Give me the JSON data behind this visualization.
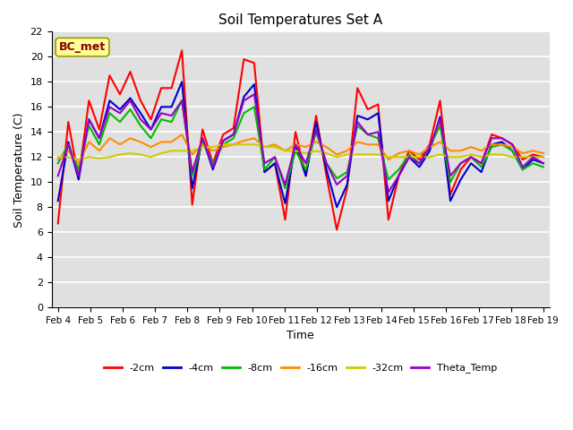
{
  "title": "Soil Temperatures Set A",
  "xlabel": "Time",
  "ylabel": "Soil Temperature (C)",
  "ylim": [
    0,
    22
  ],
  "yticks": [
    0,
    2,
    4,
    6,
    8,
    10,
    12,
    14,
    16,
    18,
    20,
    22
  ],
  "xtick_labels": [
    "Feb 4",
    "Feb 5",
    "Feb 6",
    "Feb 7",
    "Feb 8",
    "Feb 9",
    "Feb 10",
    "Feb 11",
    "Feb 12",
    "Feb 13",
    "Feb 14",
    "Feb 15",
    "Feb 16",
    "Feb 17",
    "Feb 18",
    "Feb 19"
  ],
  "n_days": 16,
  "annotation_text": "BC_met",
  "annotation_color": "#8B0000",
  "annotation_bg": "#FFFF99",
  "bg_color": "#E0E0E0",
  "grid_color": "white",
  "series_names": [
    "-2cm",
    "-4cm",
    "-8cm",
    "-16cm",
    "-32cm",
    "Theta_Temp"
  ],
  "series_colors": [
    "#FF0000",
    "#0000CC",
    "#00BB00",
    "#FF8C00",
    "#CCCC00",
    "#9900CC"
  ],
  "linewidth": 1.5,
  "cm2": [
    6.7,
    14.8,
    10.3,
    16.5,
    14.2,
    18.5,
    17.0,
    18.8,
    16.5,
    15.0,
    17.5,
    17.5,
    20.5,
    8.2,
    14.2,
    11.5,
    13.8,
    14.3,
    19.8,
    19.5,
    10.8,
    11.5,
    7.0,
    14.0,
    10.5,
    15.3,
    10.5,
    6.2,
    9.5,
    17.5,
    15.8,
    16.2,
    7.0,
    10.5,
    12.5,
    11.8,
    13.0,
    16.5,
    9.0,
    11.0,
    12.0,
    11.5,
    13.8,
    13.5,
    13.0,
    11.8,
    12.2,
    12.0
  ],
  "cm4": [
    8.5,
    13.2,
    10.2,
    15.0,
    13.5,
    16.5,
    15.8,
    16.7,
    15.5,
    14.2,
    16.0,
    16.0,
    18.0,
    9.5,
    13.5,
    11.0,
    13.3,
    13.8,
    16.8,
    17.8,
    10.8,
    11.5,
    8.3,
    13.0,
    10.5,
    14.8,
    11.0,
    8.0,
    9.8,
    15.3,
    15.0,
    15.5,
    8.5,
    10.5,
    12.0,
    11.2,
    12.5,
    15.2,
    8.5,
    10.2,
    11.5,
    10.8,
    13.0,
    13.2,
    12.5,
    11.0,
    11.8,
    11.5
  ],
  "cm8": [
    11.5,
    13.0,
    11.0,
    14.5,
    13.0,
    15.5,
    14.8,
    15.8,
    14.5,
    13.5,
    15.0,
    14.8,
    16.5,
    10.5,
    13.2,
    11.5,
    13.0,
    13.5,
    15.5,
    16.0,
    11.0,
    12.0,
    9.5,
    12.5,
    11.0,
    14.0,
    11.5,
    10.3,
    10.8,
    14.5,
    13.8,
    13.5,
    10.2,
    11.0,
    12.2,
    11.5,
    12.8,
    14.5,
    10.0,
    11.5,
    12.0,
    11.2,
    12.8,
    13.0,
    12.5,
    11.0,
    11.5,
    11.2
  ],
  "cm16": [
    11.8,
    12.5,
    11.5,
    13.2,
    12.5,
    13.5,
    13.0,
    13.5,
    13.2,
    12.8,
    13.2,
    13.2,
    13.8,
    12.2,
    13.0,
    12.5,
    12.8,
    13.0,
    13.3,
    13.5,
    12.8,
    13.0,
    12.5,
    13.0,
    12.8,
    13.2,
    12.8,
    12.2,
    12.5,
    13.2,
    13.0,
    13.0,
    11.8,
    12.3,
    12.5,
    12.2,
    12.8,
    13.2,
    12.5,
    12.5,
    12.8,
    12.5,
    13.0,
    13.0,
    12.8,
    12.3,
    12.5,
    12.3
  ],
  "cm32": [
    12.0,
    12.0,
    11.8,
    12.0,
    11.9,
    12.0,
    12.2,
    12.3,
    12.2,
    12.0,
    12.3,
    12.5,
    12.5,
    12.5,
    12.8,
    12.8,
    13.0,
    13.0,
    13.0,
    13.0,
    12.8,
    12.8,
    12.5,
    12.5,
    12.3,
    12.5,
    12.3,
    12.0,
    12.2,
    12.2,
    12.2,
    12.2,
    12.0,
    12.0,
    12.0,
    12.0,
    12.0,
    12.2,
    12.0,
    12.0,
    12.2,
    12.0,
    12.2,
    12.2,
    12.0,
    12.0,
    12.0,
    12.0
  ],
  "theta": [
    10.5,
    13.0,
    10.5,
    15.0,
    13.5,
    16.0,
    15.5,
    16.5,
    15.0,
    14.2,
    15.5,
    15.3,
    16.5,
    10.8,
    13.5,
    11.2,
    13.3,
    13.8,
    16.5,
    17.0,
    11.5,
    12.0,
    9.8,
    13.0,
    11.5,
    14.2,
    11.5,
    9.8,
    10.5,
    14.8,
    13.8,
    14.0,
    9.2,
    10.5,
    12.0,
    11.5,
    12.8,
    15.0,
    10.5,
    11.5,
    12.0,
    11.5,
    13.5,
    13.5,
    13.0,
    11.2,
    12.0,
    11.5
  ]
}
